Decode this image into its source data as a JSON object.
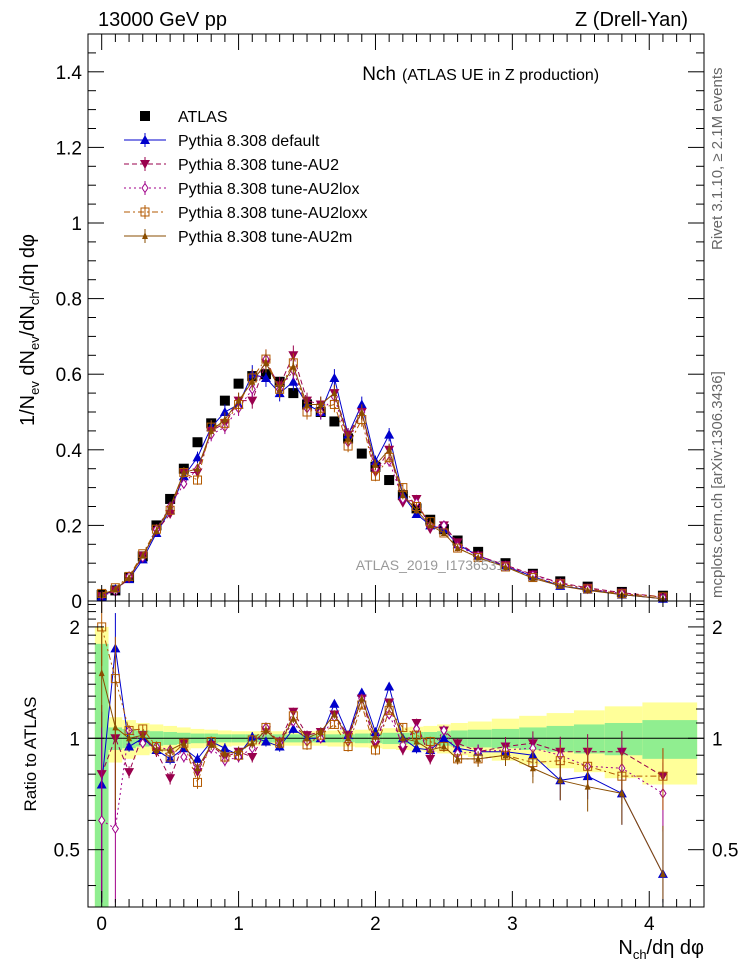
{
  "header": {
    "left": "13000 GeV pp",
    "right": "Z (Drell-Yan)"
  },
  "side": {
    "rivet": "Rivet 3.1.10, ≥ 2.1M events",
    "url": "mcplots.cern.ch [arXiv:1306.3436]"
  },
  "watermark": "ATLAS_2019_I1736531",
  "colors": {
    "atlas": "#000000",
    "default": "#0000cc",
    "au2": "#99004d",
    "au2lox": "#a0008a",
    "au2loxx": "#b35900",
    "au2m": "#8a4d00",
    "band_inner": "#90ee90",
    "band_outer": "#ffff99"
  },
  "chart_data": [
    {
      "type": "scatter",
      "title_main": "Nch",
      "title_sub": "(ATLAS UE in Z production)",
      "xlabel": "N_ch/dη dφ",
      "ylabel": "1/N_ev dN_ev/dN_ch/dη dφ",
      "xlim": [
        -0.1,
        4.4
      ],
      "ylim": [
        0,
        1.5
      ],
      "yticks": [
        "0",
        "0.2",
        "0.4",
        "0.6",
        "0.8",
        "1",
        "1.2",
        "1.4"
      ],
      "xticks": [
        "0",
        "1",
        "2",
        "3",
        "4"
      ],
      "x": [
        0.0,
        0.1,
        0.2,
        0.3,
        0.4,
        0.5,
        0.6,
        0.7,
        0.8,
        0.9,
        1.0,
        1.1,
        1.2,
        1.3,
        1.4,
        1.5,
        1.6,
        1.7,
        1.8,
        1.9,
        2.0,
        2.1,
        2.2,
        2.3,
        2.4,
        2.5,
        2.6,
        2.75,
        2.95,
        3.15,
        3.35,
        3.55,
        3.8,
        4.1
      ],
      "series": [
        {
          "name": "ATLAS",
          "marker": "square",
          "values": [
            0.016,
            0.028,
            0.062,
            0.118,
            0.2,
            0.27,
            0.35,
            0.42,
            0.47,
            0.53,
            0.575,
            0.595,
            0.6,
            0.58,
            0.55,
            0.52,
            0.5,
            0.475,
            0.43,
            0.39,
            0.355,
            0.32,
            0.28,
            0.245,
            0.215,
            0.19,
            0.16,
            0.13,
            0.1,
            0.072,
            0.052,
            0.038,
            0.024,
            0.014
          ]
        },
        {
          "name": "Pythia 8.308 default",
          "marker": "triangle",
          "values": [
            0.012,
            0.032,
            0.058,
            0.11,
            0.18,
            0.24,
            0.33,
            0.38,
            0.46,
            0.5,
            0.52,
            0.6,
            0.59,
            0.55,
            0.58,
            0.52,
            0.5,
            0.59,
            0.44,
            0.52,
            0.37,
            0.44,
            0.28,
            0.23,
            0.2,
            0.19,
            0.15,
            0.12,
            0.092,
            0.065,
            0.04,
            0.03,
            0.017,
            0.006
          ]
        },
        {
          "name": "Pythia 8.308 tune-AU2",
          "marker": "triangle-down",
          "values": [
            0.013,
            0.028,
            0.06,
            0.12,
            0.185,
            0.23,
            0.34,
            0.34,
            0.45,
            0.47,
            0.53,
            0.53,
            0.63,
            0.57,
            0.65,
            0.53,
            0.52,
            0.55,
            0.44,
            0.5,
            0.34,
            0.4,
            0.26,
            0.27,
            0.19,
            0.2,
            0.155,
            0.12,
            0.095,
            0.07,
            0.048,
            0.035,
            0.022,
            0.011
          ]
        },
        {
          "name": "Pythia 8.308 tune-AU2lox",
          "marker": "diamond",
          "values": [
            0.014,
            0.025,
            0.065,
            0.115,
            0.19,
            0.25,
            0.31,
            0.35,
            0.44,
            0.46,
            0.51,
            0.56,
            0.64,
            0.56,
            0.61,
            0.51,
            0.5,
            0.54,
            0.42,
            0.5,
            0.35,
            0.37,
            0.27,
            0.26,
            0.2,
            0.2,
            0.145,
            0.12,
            0.093,
            0.068,
            0.047,
            0.032,
            0.02,
            0.01
          ]
        },
        {
          "name": "Pythia 8.308 tune-AU2loxx",
          "marker": "square-open",
          "values": [
            0.02,
            0.035,
            0.065,
            0.125,
            0.19,
            0.24,
            0.34,
            0.32,
            0.46,
            0.47,
            0.52,
            0.59,
            0.64,
            0.56,
            0.63,
            0.5,
            0.51,
            0.52,
            0.41,
            0.48,
            0.33,
            0.38,
            0.3,
            0.25,
            0.21,
            0.18,
            0.14,
            0.115,
            0.09,
            0.062,
            0.045,
            0.032,
            0.019,
            0.011
          ]
        },
        {
          "name": "Pythia 8.308 tune-AU2m",
          "marker": "star",
          "values": [
            0.018,
            0.03,
            0.062,
            0.12,
            0.185,
            0.25,
            0.34,
            0.35,
            0.45,
            0.48,
            0.53,
            0.58,
            0.63,
            0.56,
            0.62,
            0.52,
            0.52,
            0.55,
            0.43,
            0.5,
            0.36,
            0.4,
            0.28,
            0.24,
            0.2,
            0.18,
            0.14,
            0.115,
            0.09,
            0.06,
            0.04,
            0.028,
            0.017,
            0.006
          ]
        }
      ]
    },
    {
      "type": "line",
      "ylabel": "Ratio to ATLAS",
      "xlim": [
        -0.1,
        4.4
      ],
      "ylim": [
        0.35,
        2.35
      ],
      "yticks": [
        "0.5",
        "1",
        "2"
      ],
      "xticks": [
        "0",
        "1",
        "2",
        "3",
        "4"
      ],
      "band_x": [
        0.0,
        0.1,
        0.2,
        0.3,
        0.4,
        0.5,
        0.6,
        0.7,
        0.8,
        0.9,
        1.0,
        1.1,
        1.2,
        1.3,
        1.4,
        1.5,
        1.6,
        1.7,
        1.8,
        1.9,
        2.0,
        2.1,
        2.2,
        2.3,
        2.4,
        2.5,
        2.6,
        2.75,
        2.95,
        3.15,
        3.35,
        3.55,
        3.8,
        4.1
      ],
      "band_inner": [
        0.8,
        0.07,
        0.06,
        0.05,
        0.045,
        0.04,
        0.035,
        0.03,
        0.03,
        0.025,
        0.025,
        0.025,
        0.025,
        0.025,
        0.025,
        0.025,
        0.025,
        0.025,
        0.025,
        0.03,
        0.03,
        0.035,
        0.035,
        0.04,
        0.04,
        0.045,
        0.05,
        0.055,
        0.06,
        0.07,
        0.08,
        0.09,
        0.1,
        0.12
      ],
      "band_outer": [
        1.0,
        0.14,
        0.12,
        0.1,
        0.09,
        0.08,
        0.07,
        0.06,
        0.055,
        0.05,
        0.045,
        0.045,
        0.045,
        0.045,
        0.045,
        0.045,
        0.045,
        0.05,
        0.05,
        0.055,
        0.06,
        0.065,
        0.07,
        0.075,
        0.08,
        0.09,
        0.1,
        0.11,
        0.13,
        0.15,
        0.17,
        0.19,
        0.22,
        0.25
      ],
      "series": [
        {
          "name": "Pythia 8.308 default",
          "values": [
            0.75,
            1.75,
            0.95,
            1.0,
            0.93,
            0.88,
            0.94,
            0.88,
            0.98,
            0.94,
            0.9,
            1.01,
            0.98,
            0.95,
            1.06,
            1.0,
            1.0,
            1.24,
            1.02,
            1.33,
            1.04,
            1.38,
            1.0,
            0.94,
            0.93,
            1.0,
            0.94,
            0.92,
            0.92,
            0.9,
            0.77,
            0.79,
            0.71,
            0.43
          ]
        },
        {
          "name": "Pythia 8.308 tune-AU2",
          "values": [
            0.8,
            1.0,
            0.81,
            1.02,
            0.92,
            0.78,
            0.97,
            0.81,
            0.96,
            0.89,
            0.92,
            0.89,
            1.05,
            0.98,
            1.18,
            1.02,
            1.04,
            1.16,
            1.02,
            1.28,
            0.96,
            1.25,
            0.93,
            1.1,
            0.88,
            1.05,
            0.97,
            0.92,
            0.95,
            0.97,
            0.92,
            0.92,
            0.92,
            0.79
          ]
        },
        {
          "name": "Pythia 8.308 tune-AU2lox",
          "values": [
            0.6,
            0.57,
            1.05,
            0.97,
            0.95,
            0.93,
            0.89,
            0.83,
            0.94,
            0.87,
            0.89,
            0.94,
            1.07,
            0.97,
            1.11,
            0.98,
            1.0,
            1.14,
            0.98,
            1.28,
            0.99,
            1.16,
            0.96,
            1.06,
            0.93,
            1.05,
            0.91,
            0.92,
            0.93,
            0.94,
            0.9,
            0.84,
            0.83,
            0.71
          ]
        },
        {
          "name": "Pythia 8.308 tune-AU2loxx",
          "values": [
            2.0,
            1.45,
            1.05,
            1.06,
            0.95,
            0.89,
            0.97,
            0.76,
            0.98,
            0.89,
            0.9,
            0.99,
            1.07,
            0.97,
            1.15,
            0.96,
            1.02,
            1.09,
            0.95,
            1.23,
            0.93,
            1.19,
            1.07,
            1.02,
            0.98,
            0.95,
            0.88,
            0.88,
            0.9,
            0.86,
            0.87,
            0.84,
            0.79,
            0.79
          ]
        },
        {
          "name": "Pythia 8.308 tune-AU2m",
          "values": [
            1.5,
            1.07,
            1.0,
            1.02,
            0.93,
            0.93,
            0.97,
            0.83,
            0.96,
            0.91,
            0.92,
            0.97,
            1.05,
            0.97,
            1.13,
            1.0,
            1.04,
            1.16,
            1.0,
            1.28,
            1.01,
            1.25,
            1.0,
            0.98,
            0.93,
            0.95,
            0.88,
            0.88,
            0.9,
            0.83,
            0.77,
            0.74,
            0.71,
            0.43
          ]
        }
      ]
    }
  ]
}
